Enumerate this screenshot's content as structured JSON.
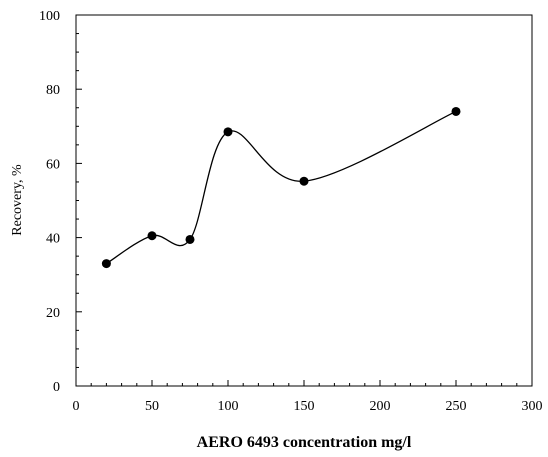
{
  "chart_data": {
    "type": "line",
    "title": "",
    "xlabel": "AERO 6493 concentration mg/l",
    "ylabel": "Recovery, %",
    "xlim": [
      0,
      300
    ],
    "ylim": [
      0,
      100
    ],
    "x_ticks": [
      0,
      50,
      100,
      150,
      200,
      250,
      300
    ],
    "y_ticks": [
      0,
      20,
      40,
      60,
      80,
      100
    ],
    "x_minor_step": 10,
    "y_minor_step": 5,
    "grid": false,
    "smooth": true,
    "series": [
      {
        "x": [
          20,
          50,
          75,
          100,
          150,
          250
        ],
        "y": [
          33,
          40.5,
          39.5,
          68.5,
          55.2,
          74
        ]
      }
    ],
    "colors": {
      "line": "#000000",
      "marker": "#000000"
    }
  }
}
